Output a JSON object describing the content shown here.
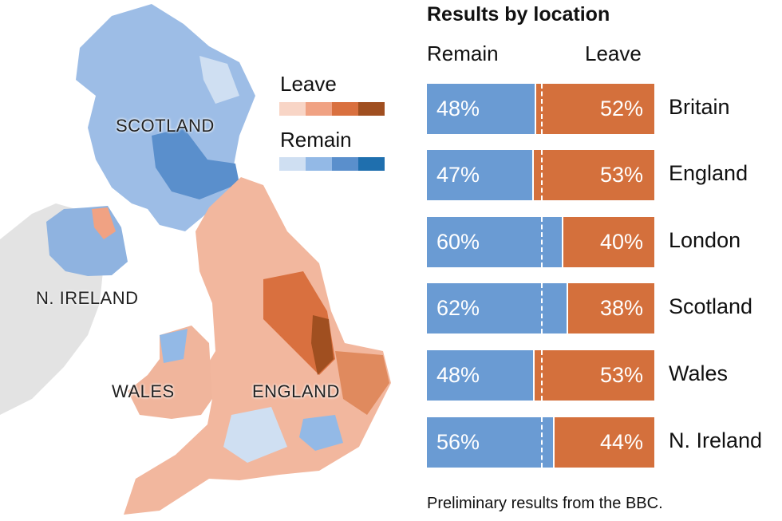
{
  "chart_data": {
    "type": "bar",
    "title": "Results by location",
    "series_labels": {
      "remain": "Remain",
      "leave": "Leave"
    },
    "categories": [
      "Britain",
      "England",
      "London",
      "Scotland",
      "Wales",
      "N. Ireland"
    ],
    "series": [
      {
        "name": "Remain",
        "values": [
          48,
          47,
          60,
          62,
          48,
          56
        ],
        "color": "#6a9bd3"
      },
      {
        "name": "Leave",
        "values": [
          52,
          53,
          40,
          38,
          53,
          44
        ],
        "color": "#d4703c"
      }
    ],
    "reference_line": 50,
    "note": "Preliminary results from the BBC."
  },
  "map": {
    "labels": {
      "scotland": "SCOTLAND",
      "n_ireland": "N. IRELAND",
      "wales": "WALES",
      "england": "ENGLAND"
    },
    "legend": {
      "leave_title": "Leave",
      "leave_colors": [
        "#f8d5c6",
        "#f0a283",
        "#d9703f",
        "#a04f20"
      ],
      "remain_title": "Remain",
      "remain_colors": [
        "#cfdff2",
        "#93b9e6",
        "#5a8fcc",
        "#1f6fae"
      ]
    }
  }
}
